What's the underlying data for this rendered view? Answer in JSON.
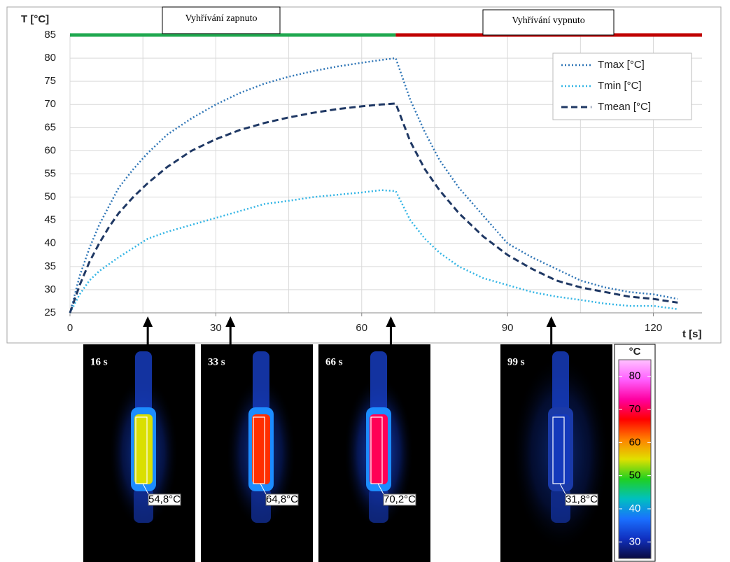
{
  "chart_data": {
    "type": "line",
    "y_label": "T [°C]",
    "x_label": "t [s]",
    "xlim": [
      0,
      130
    ],
    "ylim": [
      25,
      85
    ],
    "xticks": [
      0,
      30,
      60,
      90,
      120
    ],
    "x_minor_ticks": [
      15,
      45,
      75,
      105
    ],
    "yticks": [
      25,
      30,
      35,
      40,
      45,
      50,
      55,
      60,
      65,
      70,
      75,
      80,
      85
    ],
    "grid": true,
    "legend": "upper right",
    "phases": [
      {
        "label": "Vyhřívání zapnuto",
        "start": 0,
        "end": 67,
        "color": "#1fa84f"
      },
      {
        "label": "Vyhřívání vypnuto",
        "start": 67,
        "end": 130,
        "color": "#c00000"
      }
    ],
    "x": [
      0,
      2,
      4,
      6,
      8,
      10,
      13,
      16,
      20,
      25,
      30,
      35,
      40,
      45,
      50,
      55,
      60,
      64,
      67,
      70,
      73,
      76,
      80,
      85,
      90,
      95,
      100,
      105,
      110,
      115,
      120,
      125
    ],
    "series": [
      {
        "name": "Tmax [°C]",
        "color": "#2e75b6",
        "style": "dotted",
        "values": [
          25,
          33,
          39,
          44,
          48,
          52,
          56,
          59.5,
          63.5,
          67,
          70,
          72.5,
          74.5,
          76,
          77.2,
          78.2,
          79,
          79.6,
          80,
          71,
          64,
          58,
          52,
          46,
          40,
          37,
          34.5,
          32,
          30.5,
          29.5,
          29,
          28
        ]
      },
      {
        "name": "Tmin [°C]",
        "color": "#33b5e5",
        "style": "dotted",
        "values": [
          25,
          29,
          32,
          34,
          35.5,
          37,
          39,
          41,
          42.5,
          44,
          45.5,
          47,
          48.5,
          49.2,
          50,
          50.5,
          51,
          51.5,
          51.3,
          45,
          41,
          38,
          35,
          32.5,
          31,
          29.5,
          28.5,
          27.8,
          27,
          26.5,
          26.5,
          25.8
        ]
      },
      {
        "name": "Tmean [°C]",
        "color": "#1f3864",
        "style": "dashed",
        "values": [
          25,
          31,
          36,
          40,
          43.5,
          46.5,
          50,
          53,
          56.5,
          60,
          62.5,
          64.5,
          66,
          67.2,
          68.2,
          69,
          69.6,
          70,
          70.2,
          62,
          56,
          51.5,
          46.5,
          41.5,
          37.5,
          34.5,
          32,
          30.5,
          29.5,
          28.5,
          28,
          27.2
        ]
      }
    ],
    "thermograms": [
      {
        "time": {
          "value": 16,
          "label": "16 s"
        },
        "temperature": {
          "value": 54.8,
          "label": "54,8°C"
        }
      },
      {
        "time": {
          "value": 33,
          "label": "33 s"
        },
        "temperature": {
          "value": 64.8,
          "label": "64,8°C"
        }
      },
      {
        "time": {
          "value": 66,
          "label": "66 s"
        },
        "temperature": {
          "value": 70.2,
          "label": "70,2°C"
        }
      },
      {
        "time": {
          "value": 99,
          "label": "99 s"
        },
        "temperature": {
          "value": 31.8,
          "label": "31,8°C"
        }
      }
    ],
    "colorbar": {
      "title": "°C",
      "lim": [
        25,
        85
      ],
      "ticks": [
        30,
        40,
        50,
        60,
        70,
        80
      ],
      "colors": [
        "#0a0a40",
        "#1030c0",
        "#1a70ff",
        "#00c0c0",
        "#20d020",
        "#e0e000",
        "#ff8000",
        "#ff0000",
        "#ff00a0",
        "#ff60ff",
        "#ffc0ff"
      ]
    }
  }
}
